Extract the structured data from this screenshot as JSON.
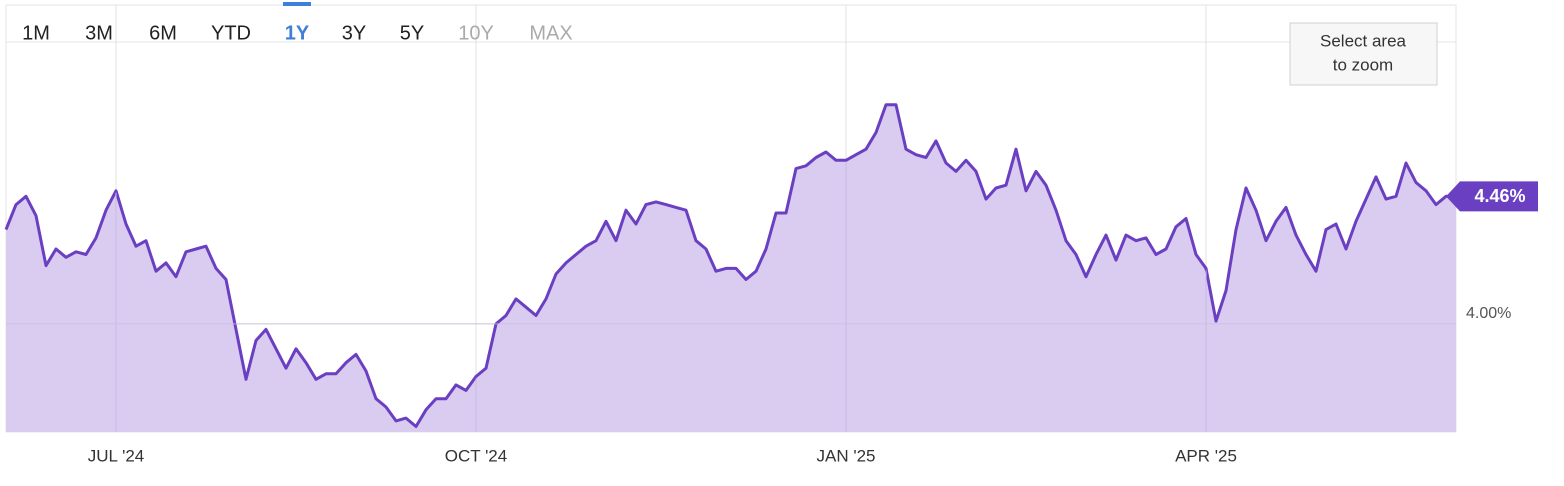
{
  "chart_data": {
    "type": "area",
    "range_buttons": [
      "1M",
      "3M",
      "6M",
      "YTD",
      "1Y",
      "3Y",
      "5Y",
      "10Y",
      "MAX"
    ],
    "active_range": "1Y",
    "disabled_ranges": [
      "10Y",
      "MAX"
    ],
    "zoom_button": [
      "Select area",
      "to zoom"
    ],
    "categories": [
      null,
      null,
      null,
      null,
      null,
      null,
      null,
      null,
      null,
      null,
      null,
      "JUL '24",
      null,
      null,
      null,
      null,
      null,
      null,
      null,
      null,
      null,
      null,
      null,
      null,
      null,
      null,
      null,
      null,
      null,
      null,
      null,
      null,
      null,
      null,
      null,
      null,
      null,
      null,
      null,
      null,
      null,
      null,
      null,
      null,
      null,
      null,
      null,
      "OCT '24",
      null,
      null,
      null,
      null,
      null,
      null,
      null,
      null,
      null,
      null,
      null,
      null,
      null,
      null,
      null,
      null,
      null,
      null,
      null,
      null,
      null,
      null,
      null,
      null,
      null,
      null,
      null,
      null,
      null,
      null,
      null,
      null,
      null,
      null,
      null,
      null,
      "JAN '25",
      null,
      null,
      null,
      null,
      null,
      null,
      null,
      null,
      null,
      null,
      null,
      null,
      null,
      null,
      null,
      null,
      null,
      null,
      null,
      null,
      null,
      null,
      null,
      null,
      null,
      null,
      null,
      null,
      null,
      null,
      null,
      null,
      null,
      null,
      null,
      "APR '25",
      null,
      null,
      null,
      null,
      null,
      null,
      null,
      null,
      null,
      null,
      null,
      null,
      null,
      null,
      null,
      null,
      null,
      null,
      null,
      null,
      null,
      null,
      null,
      null,
      null
    ],
    "values": [
      4.34,
      4.43,
      4.46,
      4.39,
      4.21,
      4.27,
      4.24,
      4.26,
      4.25,
      4.31,
      4.41,
      4.48,
      4.36,
      4.28,
      4.3,
      4.19,
      4.22,
      4.17,
      4.26,
      4.27,
      4.28,
      4.2,
      4.16,
      3.98,
      3.8,
      3.94,
      3.98,
      3.91,
      3.84,
      3.91,
      3.86,
      3.8,
      3.82,
      3.82,
      3.86,
      3.89,
      3.83,
      3.73,
      3.7,
      3.65,
      3.66,
      3.63,
      3.69,
      3.73,
      3.73,
      3.78,
      3.76,
      3.81,
      3.84,
      4.0,
      4.03,
      4.09,
      4.06,
      4.03,
      4.09,
      4.18,
      4.22,
      4.25,
      4.28,
      4.3,
      4.37,
      4.3,
      4.41,
      4.36,
      4.43,
      4.44,
      4.43,
      4.42,
      4.41,
      4.3,
      4.27,
      4.19,
      4.2,
      4.2,
      4.16,
      4.19,
      4.27,
      4.4,
      4.4,
      4.56,
      4.57,
      4.6,
      4.62,
      4.59,
      4.59,
      4.61,
      4.63,
      4.69,
      4.79,
      4.79,
      4.63,
      4.61,
      4.6,
      4.66,
      4.58,
      4.55,
      4.59,
      4.55,
      4.45,
      4.49,
      4.5,
      4.63,
      4.48,
      4.55,
      4.5,
      4.41,
      4.3,
      4.25,
      4.17,
      4.25,
      4.32,
      4.23,
      4.32,
      4.3,
      4.31,
      4.25,
      4.27,
      4.35,
      4.38,
      4.25,
      4.2,
      4.01,
      4.12,
      4.34,
      4.49,
      4.41,
      4.3,
      4.37,
      4.42,
      4.32,
      4.25,
      4.19,
      4.34,
      4.36,
      4.27,
      4.37,
      4.45,
      4.53,
      4.45,
      4.46,
      4.58,
      4.51,
      4.48,
      4.43,
      4.46,
      4.46
    ],
    "end_label": {
      "value": 4.46,
      "label": "4.46%"
    },
    "color": "#6a3fc1",
    "fill_color": "#d9ccf0",
    "ylim": [
      3.61,
      5.15
    ],
    "yticks": [
      {
        "value": 4,
        "label": "4.00%"
      }
    ],
    "grid": true
  }
}
